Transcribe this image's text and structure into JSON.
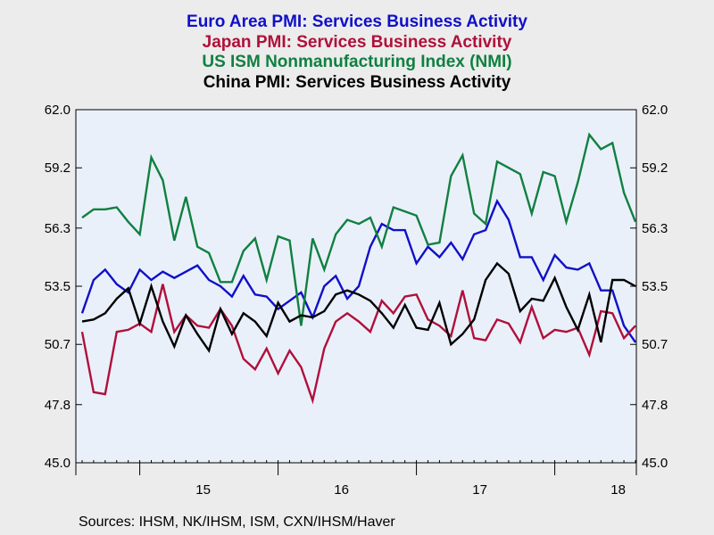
{
  "chart_data": {
    "type": "line",
    "title_lines": [
      {
        "text": "Euro Area PMI: Services Business Activity",
        "color": "#1010c8"
      },
      {
        "text": "Japan PMI: Services Business Activity",
        "color": "#b0103a"
      },
      {
        "text": "US ISM Nonmanufacturing Index (NMI)",
        "color": "#108040"
      },
      {
        "text": "China PMI: Services Business Activity",
        "color": "#000000"
      }
    ],
    "x_ticks": [
      "15",
      "16",
      "17",
      "18"
    ],
    "y_ticks": [
      "62.0",
      "59.2",
      "56.3",
      "53.5",
      "50.7",
      "47.8",
      "45.0"
    ],
    "ylim": [
      45.0,
      62.0
    ],
    "x_start": "2014-08",
    "x_end": "2018-11",
    "grid": false,
    "series": [
      {
        "name": "Euro Area PMI: Services Business Activity",
        "color": "#1010c8",
        "values": [
          52.2,
          53.8,
          54.3,
          53.6,
          53.2,
          54.3,
          53.8,
          54.2,
          53.9,
          54.2,
          54.5,
          53.8,
          53.5,
          53.0,
          54.0,
          53.1,
          53.0,
          52.4,
          52.8,
          53.2,
          52.0,
          53.5,
          54.0,
          52.9,
          53.5,
          55.4,
          56.5,
          56.2,
          56.2,
          54.6,
          55.4,
          54.9,
          55.6,
          54.8,
          56.0,
          56.2,
          57.6,
          56.7,
          54.9,
          54.9,
          53.8,
          55.0,
          54.4,
          54.3,
          54.6,
          53.3,
          53.3,
          51.6,
          50.8
        ]
      },
      {
        "name": "Japan PMI: Services Business Activity",
        "color": "#b0103a",
        "values": [
          51.3,
          48.4,
          48.3,
          51.3,
          51.4,
          51.7,
          51.3,
          53.6,
          51.3,
          52.1,
          51.6,
          51.5,
          52.4,
          51.6,
          50.0,
          49.5,
          50.5,
          49.3,
          50.4,
          49.6,
          48.0,
          50.5,
          51.8,
          52.2,
          51.8,
          51.3,
          52.8,
          52.2,
          53.0,
          53.1,
          51.9,
          51.6,
          51.1,
          53.3,
          51.0,
          50.9,
          51.9,
          51.7,
          50.8,
          52.5,
          51.0,
          51.4,
          51.3,
          51.5,
          50.2,
          52.3,
          52.2,
          51.0,
          51.6
        ]
      },
      {
        "name": "US ISM Nonmanufacturing Index (NMI)",
        "color": "#108040",
        "values": [
          56.8,
          57.2,
          57.2,
          57.3,
          56.6,
          56.0,
          59.7,
          58.6,
          55.7,
          57.8,
          55.4,
          55.1,
          53.7,
          53.7,
          55.2,
          55.8,
          53.8,
          55.9,
          55.7,
          51.6,
          55.8,
          54.3,
          56.0,
          56.7,
          56.5,
          56.8,
          55.4,
          57.3,
          57.1,
          56.9,
          55.5,
          55.6,
          58.8,
          59.8,
          57.0,
          56.5,
          59.5,
          59.2,
          58.9,
          57.0,
          59.0,
          58.8,
          56.6,
          58.5,
          60.8,
          60.1,
          60.4,
          58.0,
          56.6
        ]
      },
      {
        "name": "China PMI: Services Business Activity",
        "color": "#000000",
        "values": [
          51.8,
          51.9,
          52.2,
          52.9,
          53.4,
          51.7,
          53.5,
          51.8,
          50.6,
          52.1,
          51.2,
          50.4,
          52.4,
          51.2,
          52.2,
          51.8,
          51.1,
          52.7,
          51.8,
          52.1,
          52.0,
          52.3,
          53.1,
          53.3,
          53.1,
          52.8,
          52.2,
          51.5,
          52.6,
          51.5,
          51.4,
          52.7,
          50.7,
          51.2,
          51.9,
          53.8,
          54.6,
          54.1,
          52.3,
          52.9,
          52.8,
          53.9,
          52.5,
          51.4,
          53.1,
          50.8,
          53.8,
          53.8,
          53.5
        ]
      }
    ],
    "source": "Sources:  IHSM, NK/IHSM, ISM, CXN/IHSM/Haver"
  }
}
